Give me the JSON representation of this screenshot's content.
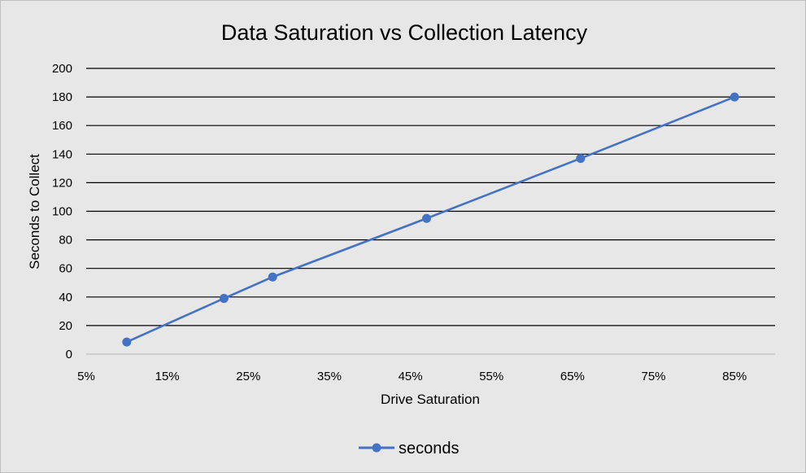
{
  "chart_data": {
    "type": "line",
    "title": "Data Saturation vs Collection Latency",
    "xlabel": "Drive Saturation",
    "ylabel": "Seconds to Collect",
    "x_unit": "%",
    "xlim": [
      5,
      90
    ],
    "ylim": [
      0,
      200
    ],
    "x_ticks": [
      5,
      15,
      25,
      35,
      45,
      55,
      65,
      75,
      85
    ],
    "x_tick_labels": [
      "5%",
      "15%",
      "25%",
      "35%",
      "45%",
      "55%",
      "65%",
      "75%",
      "85%"
    ],
    "y_ticks": [
      0,
      20,
      40,
      60,
      80,
      100,
      120,
      140,
      160,
      180,
      200
    ],
    "y_tick_labels": [
      "0",
      "20",
      "40",
      "60",
      "80",
      "100",
      "120",
      "140",
      "160",
      "180",
      "200"
    ],
    "grid": "horizontal",
    "legend_position": "bottom",
    "series": [
      {
        "name": "seconds",
        "color": "#4472c4",
        "marker": "circle",
        "x": [
          10,
          22,
          28,
          47,
          66,
          85
        ],
        "y": [
          8.5,
          39,
          54,
          95,
          137,
          180
        ]
      }
    ]
  }
}
